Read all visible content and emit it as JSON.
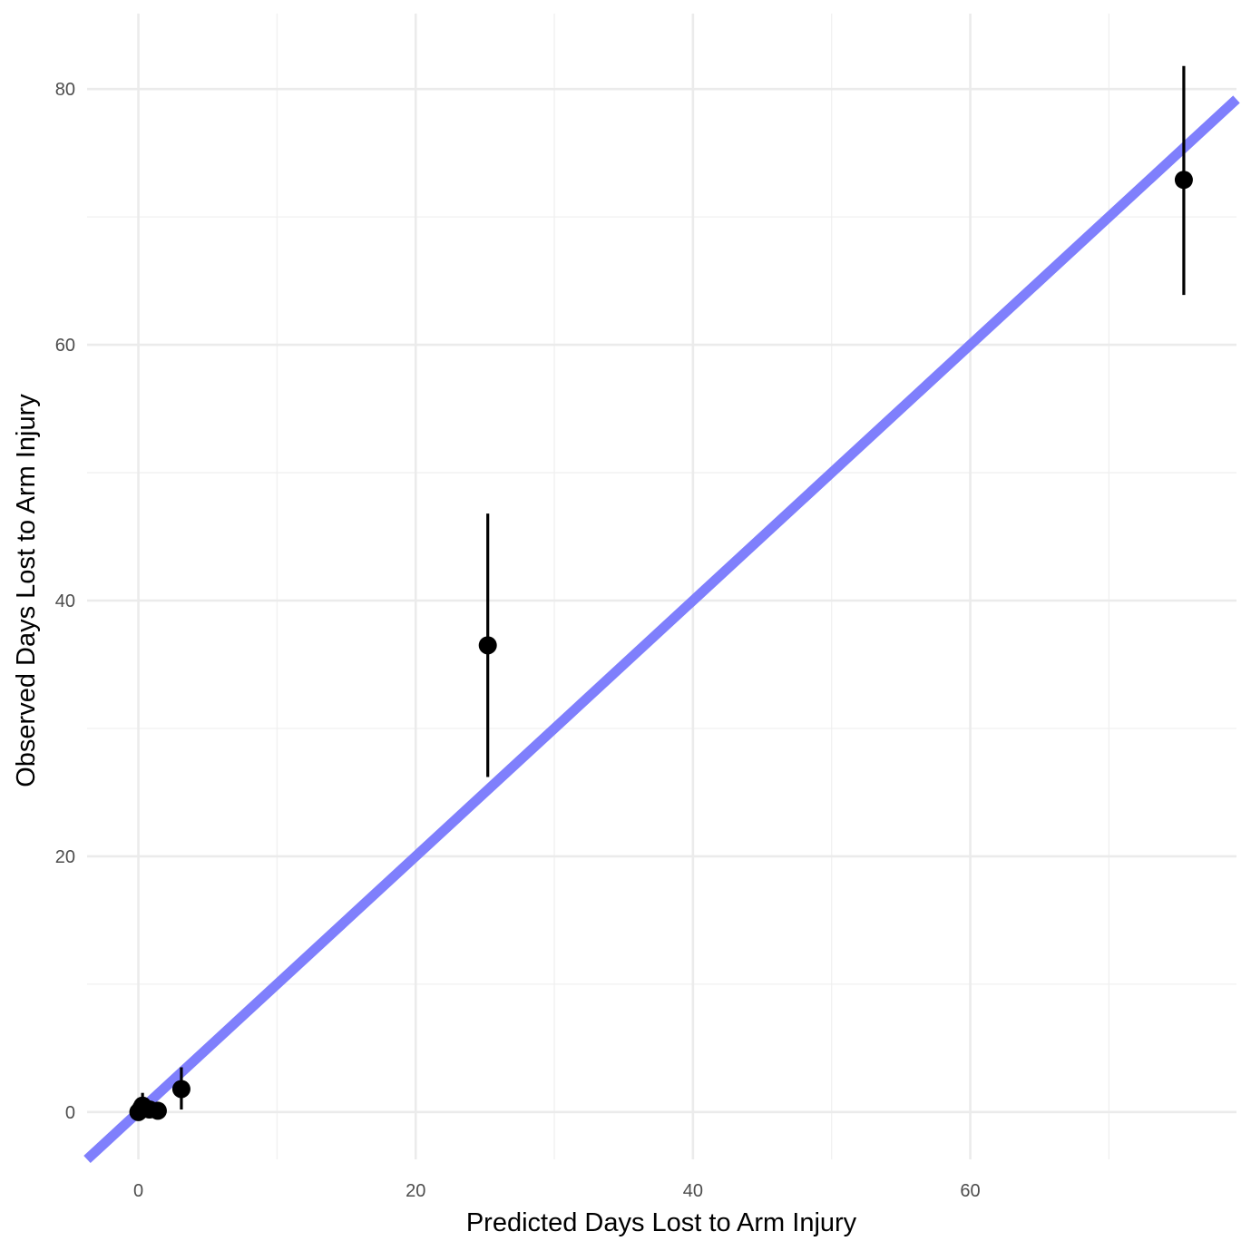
{
  "chart_data": {
    "type": "scatter",
    "title": "",
    "xlabel": "Predicted Days Lost to Arm Injury",
    "ylabel": "Observed Days Lost to Arm Injury",
    "xlim": [
      -3.7,
      79.2
    ],
    "ylim": [
      -3.7,
      85.9
    ],
    "x_ticks": [
      0,
      20,
      40,
      60
    ],
    "y_ticks": [
      0,
      20,
      40,
      60,
      80
    ],
    "x_tick_labels": [
      "0",
      "20",
      "40",
      "60"
    ],
    "y_tick_labels": [
      "0",
      "20",
      "40",
      "60",
      "80"
    ],
    "grid": true,
    "reference_line": {
      "slope": 1,
      "intercept": 0,
      "color": "#7f7ffc"
    },
    "point_color": "#000000",
    "points": [
      {
        "x": 0.0,
        "y": 0.0,
        "ymin": 0.0,
        "ymax": 0.2
      },
      {
        "x": 0.1,
        "y": 0.1,
        "ymin": 0.0,
        "ymax": 0.4
      },
      {
        "x": 0.2,
        "y": 0.3,
        "ymin": 0.0,
        "ymax": 0.8
      },
      {
        "x": 0.3,
        "y": 0.5,
        "ymin": 0.0,
        "ymax": 1.5
      },
      {
        "x": 0.5,
        "y": 0.3,
        "ymin": 0.0,
        "ymax": 0.9
      },
      {
        "x": 0.8,
        "y": 0.2,
        "ymin": 0.0,
        "ymax": 0.7
      },
      {
        "x": 1.4,
        "y": 0.1,
        "ymin": 0.0,
        "ymax": 0.5
      },
      {
        "x": 3.1,
        "y": 1.8,
        "ymin": 0.2,
        "ymax": 3.5
      },
      {
        "x": 25.2,
        "y": 36.5,
        "ymin": 26.2,
        "ymax": 46.8
      },
      {
        "x": 75.4,
        "y": 72.9,
        "ymin": 63.9,
        "ymax": 81.8
      }
    ]
  }
}
